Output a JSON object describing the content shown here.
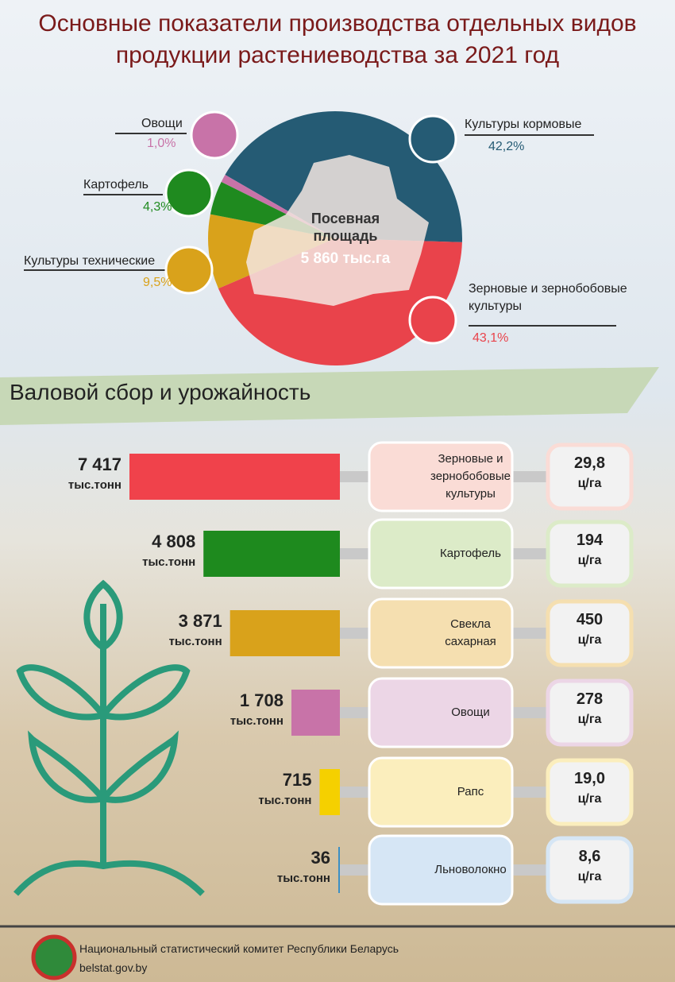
{
  "title": "Основные показатели производства отдельных видов продукции растениеводства за 2021 год",
  "chart_data": [
    {
      "type": "pie",
      "annotations": [
        "Посевная площадь",
        "5 860 тыс.га"
      ],
      "categories": [
        "Культуры кормовые",
        "Зерновые и зернобобовые культуры",
        "Культуры технические",
        "Картофель",
        "Овощи"
      ],
      "values": [
        42.2,
        43.1,
        9.5,
        4.3,
        1.0
      ],
      "value_labels": [
        "42,2%",
        "43,1%",
        "9,5%",
        "4,3%",
        "1,0%"
      ],
      "colors": [
        "#255b74",
        "#e9434b",
        "#d9a21b",
        "#1f8a1f",
        "#c873a8"
      ]
    },
    {
      "type": "bar",
      "title": "Валовой сбор и урожайность",
      "categories": [
        "Зерновые и зернобобовые культуры",
        "Картофель",
        "Свекла сахарная",
        "Овощи",
        "Рапс",
        "Льноволокно"
      ],
      "values": [
        7417,
        4808,
        3871,
        1708,
        715,
        36
      ],
      "value_labels": [
        "7 417",
        "4 808",
        "3 871",
        "1 708",
        "715",
        "36"
      ],
      "value_unit": "тыс.тонн",
      "colors": [
        "#f0424b",
        "#1e8a1e",
        "#d9a21b",
        "#c873a8",
        "#f5d000",
        "#3b8fc4"
      ],
      "yields": [
        29.8,
        194,
        450,
        278,
        19.0,
        8.6
      ],
      "yield_labels": [
        "29,8",
        "194",
        "450",
        "278",
        "19,0",
        "8,6"
      ],
      "yield_unit": "ц/га"
    }
  ],
  "footer": {
    "organization": "Национальный статистический комитет Республики Беларусь",
    "site": "belstat.gov.by"
  }
}
